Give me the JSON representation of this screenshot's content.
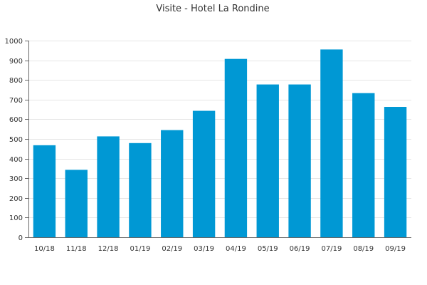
{
  "chart_data": {
    "type": "bar",
    "title": "Visite - Hotel La Rondine",
    "categories": [
      "10/18",
      "11/18",
      "12/18",
      "01/19",
      "02/19",
      "03/19",
      "04/19",
      "05/19",
      "06/19",
      "07/19",
      "08/19",
      "09/19"
    ],
    "values": [
      468,
      343,
      513,
      479,
      545,
      643,
      907,
      777,
      777,
      955,
      733,
      663
    ],
    "ylim": [
      0,
      1000
    ],
    "yticks": [
      0,
      100,
      200,
      300,
      400,
      500,
      600,
      700,
      800,
      900,
      1000
    ],
    "xlabel": "",
    "ylabel": "",
    "grid": true,
    "bar_color": "#0098d4"
  }
}
